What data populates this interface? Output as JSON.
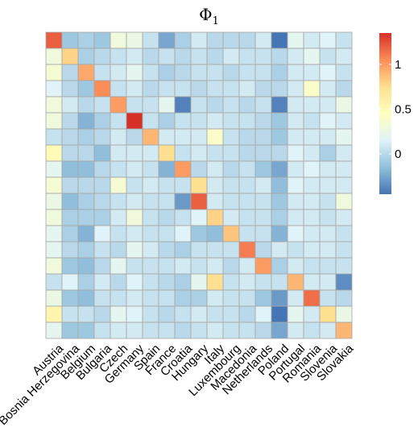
{
  "chart_data": {
    "type": "heatmap",
    "title": "Φ",
    "title_subscript": "1",
    "row_labels": [
      "Austria",
      "Bosnia Herzegovina",
      "Belgium",
      "Bulgaria",
      "Czech",
      "Germany",
      "Spain",
      "France",
      "Croatia",
      "Hungary",
      "Italy",
      "Luxembourg",
      "Macedonia",
      "Netherlands",
      "Poland",
      "Portugal",
      "Romania",
      "Slovenia",
      "Slovakia"
    ],
    "col_labels": [
      "Austria",
      "Bosnia Herzegovina",
      "Belgium",
      "Bulgaria",
      "Czech",
      "Germany",
      "Spain",
      "France",
      "Croatia",
      "Hungary",
      "Italy",
      "Luxembourg",
      "Macedonia",
      "Netherlands",
      "Poland",
      "Portugal",
      "Romania",
      "Slovenia",
      "Slovakia"
    ],
    "values": [
      [
        1.2,
        -0.1,
        -0.05,
        -0.1,
        0.3,
        0.25,
        0.05,
        -0.25,
        -0.05,
        0.1,
        0.0,
        0.0,
        0.0,
        0.1,
        -0.45,
        0.2,
        0.1,
        0.15,
        0.05
      ],
      [
        0.3,
        0.8,
        -0.05,
        0.0,
        0.05,
        0.1,
        0.0,
        0.05,
        0.0,
        0.05,
        0.0,
        0.1,
        0.05,
        0.05,
        0.0,
        0.1,
        0.2,
        0.05,
        0.1
      ],
      [
        0.35,
        0.0,
        0.95,
        0.05,
        0.1,
        0.2,
        0.05,
        -0.05,
        0.0,
        0.05,
        0.05,
        0.0,
        0.05,
        0.05,
        -0.05,
        0.1,
        0.1,
        0.15,
        0.05
      ],
      [
        0.15,
        0.0,
        -0.1,
        1.05,
        0.05,
        0.1,
        0.0,
        0.05,
        0.05,
        0.0,
        0.05,
        0.05,
        0.1,
        0.0,
        0.0,
        0.1,
        0.4,
        0.1,
        0.0
      ],
      [
        0.3,
        0.1,
        0.0,
        0.05,
        1.0,
        0.05,
        0.05,
        0.2,
        -0.4,
        0.05,
        0.0,
        0.05,
        0.0,
        0.05,
        -0.4,
        0.1,
        0.1,
        0.1,
        0.25
      ],
      [
        0.3,
        0.0,
        -0.2,
        -0.05,
        0.05,
        1.35,
        0.05,
        -0.05,
        0.05,
        0.05,
        0.1,
        0.05,
        0.05,
        0.0,
        -0.1,
        0.1,
        0.05,
        0.15,
        0.1
      ],
      [
        0.05,
        0.0,
        -0.05,
        0.0,
        0.1,
        0.0,
        0.9,
        0.1,
        0.1,
        0.1,
        0.4,
        0.05,
        0.0,
        0.0,
        -0.1,
        0.1,
        0.1,
        0.1,
        0.2
      ],
      [
        0.5,
        0.0,
        0.0,
        -0.15,
        0.1,
        0.1,
        0.1,
        0.75,
        0.05,
        0.1,
        0.05,
        0.05,
        0.0,
        0.0,
        0.0,
        0.15,
        0.1,
        -0.05,
        0.1
      ],
      [
        0.2,
        -0.15,
        -0.15,
        0.0,
        0.05,
        0.1,
        0.05,
        -0.2,
        1.0,
        0.0,
        0.1,
        0.0,
        0.05,
        -0.1,
        -0.25,
        0.1,
        0.15,
        0.1,
        0.1
      ],
      [
        0.35,
        0.0,
        0.0,
        0.0,
        0.35,
        0.05,
        0.1,
        0.05,
        0.05,
        0.75,
        0.1,
        0.05,
        0.05,
        0.1,
        -0.15,
        0.15,
        0.1,
        0.1,
        0.1
      ],
      [
        0.25,
        -0.15,
        -0.05,
        0.0,
        0.05,
        0.1,
        0.05,
        0.05,
        -0.3,
        1.2,
        0.1,
        0.05,
        0.05,
        0.05,
        -0.1,
        0.1,
        0.1,
        0.05,
        0.3
      ],
      [
        0.3,
        -0.05,
        -0.05,
        -0.05,
        0.1,
        0.3,
        0.05,
        0.0,
        0.05,
        0.15,
        0.8,
        0.1,
        0.05,
        0.05,
        -0.05,
        0.1,
        0.1,
        0.05,
        0.1
      ],
      [
        0.2,
        -0.05,
        -0.2,
        0.15,
        0.05,
        0.1,
        0.05,
        0.05,
        0.15,
        -0.1,
        -0.15,
        0.85,
        0.05,
        0.05,
        -0.2,
        0.15,
        0.1,
        0.1,
        0.05
      ],
      [
        0.2,
        0.0,
        -0.05,
        0.05,
        0.0,
        0.2,
        0.1,
        0.0,
        -0.05,
        0.05,
        0.05,
        0.05,
        1.1,
        0.0,
        0.1,
        0.05,
        0.1,
        0.1,
        0.05
      ],
      [
        0.3,
        -0.1,
        -0.15,
        0.0,
        0.2,
        0.05,
        0.05,
        0.05,
        0.1,
        0.05,
        0.1,
        0.0,
        0.1,
        1.0,
        -0.05,
        0.1,
        0.05,
        0.05,
        0.05
      ],
      [
        0.05,
        0.15,
        -0.05,
        0.1,
        0.0,
        0.15,
        0.05,
        0.0,
        -0.05,
        0.2,
        0.75,
        0.05,
        0.1,
        0.05,
        0.05,
        0.9,
        0.1,
        0.1,
        -0.35
      ],
      [
        0.25,
        -0.1,
        -0.15,
        0.05,
        0.05,
        0.1,
        0.05,
        0.05,
        -0.05,
        -0.05,
        0.1,
        0.05,
        0.05,
        -0.1,
        -0.3,
        0.1,
        1.15,
        0.05,
        0.0
      ],
      [
        0.55,
        0.05,
        0.05,
        0.0,
        0.2,
        0.15,
        0.05,
        0.0,
        0.05,
        0.1,
        0.05,
        0.05,
        0.0,
        0.15,
        -0.5,
        0.2,
        0.1,
        0.75,
        0.25
      ],
      [
        0.2,
        -0.1,
        -0.1,
        0.05,
        0.1,
        0.1,
        0.05,
        0.05,
        0.0,
        0.05,
        0.1,
        0.05,
        0.05,
        0.0,
        -0.25,
        0.1,
        0.05,
        0.1,
        0.9
      ]
    ],
    "colorscale": [
      "#4575b4",
      "#91bfdb",
      "#e0f3f8",
      "#ffffbf",
      "#fee090",
      "#fc8d59",
      "#d73027"
    ],
    "color_range": [
      -0.45,
      1.35
    ],
    "legend_ticks": [
      0,
      0.5,
      1
    ],
    "legend_tick_labels": [
      "0",
      "0.5",
      "1"
    ],
    "legend_position": "right",
    "cell_border_color": "#a6a6a6"
  }
}
